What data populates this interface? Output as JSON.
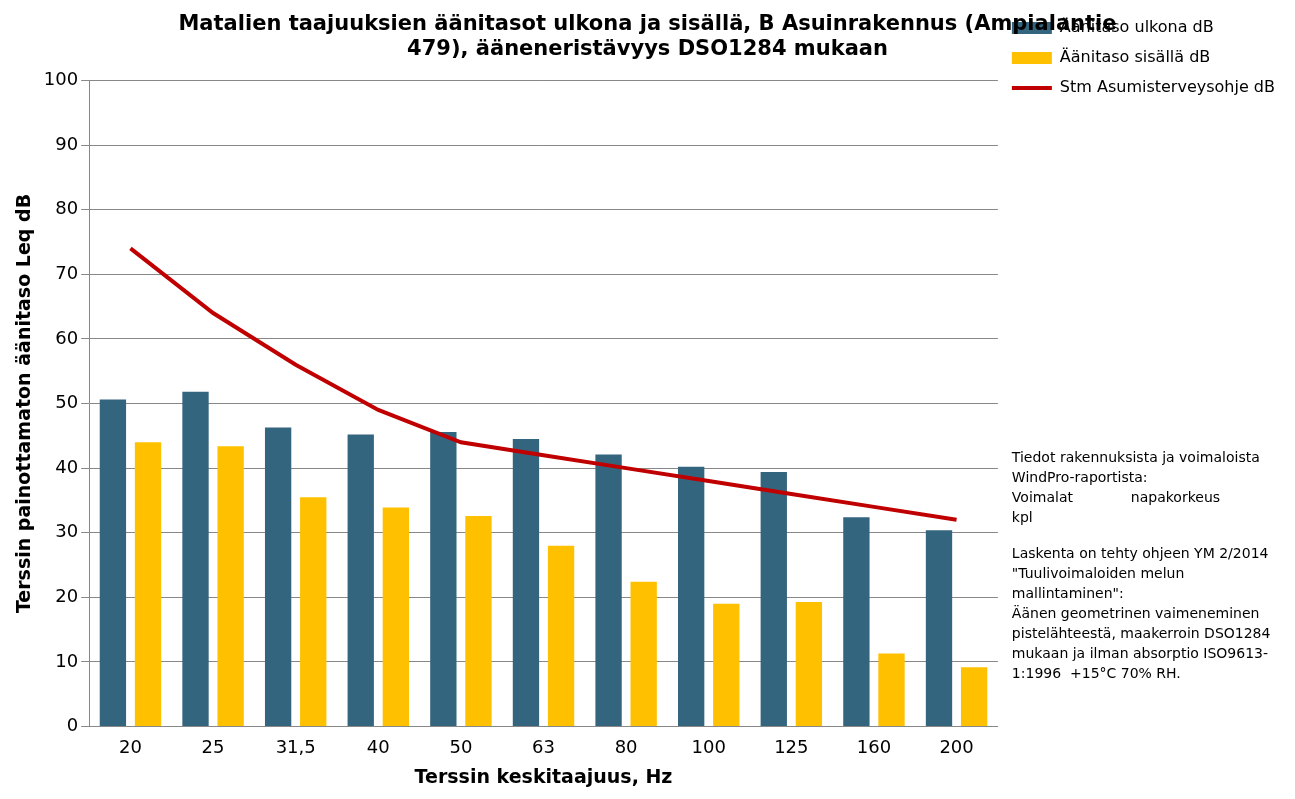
{
  "chart_data": {
    "type": "bar",
    "title": [
      "Matalien taajuuksien äänitasot ulkona ja sisällä, B Asuinrakennus (Ampialantie",
      "479), ääneneristävyys DSO1284 mukaan"
    ],
    "x_label": "Terssin keskitaajuus, Hz",
    "y_label": "Terssin painottamaton äänitaso Leq dB",
    "categories": [
      "20",
      "25",
      "31,5",
      "40",
      "50",
      "63",
      "80",
      "100",
      "125",
      "160",
      "200"
    ],
    "series": [
      {
        "name": "Äänitaso ulkona dB",
        "type": "bar",
        "color": "#34657f",
        "values": [
          50.6,
          51.8,
          46.3,
          45.2,
          45.6,
          44.5,
          42.1,
          40.2,
          39.4,
          32.4,
          30.4
        ]
      },
      {
        "name": "Äänitaso sisällä dB",
        "type": "bar",
        "color": "#ffc000",
        "values": [
          44.0,
          43.4,
          35.5,
          33.9,
          32.6,
          28.0,
          22.4,
          19.0,
          19.3,
          11.3,
          9.2
        ]
      },
      {
        "name": "Stm Asumisterveysohje dB",
        "type": "line",
        "color": "#c00000",
        "values": [
          74,
          64,
          56,
          49,
          44,
          42,
          40,
          38,
          36,
          34,
          32
        ]
      }
    ],
    "ylim": [
      0,
      100
    ],
    "yticks": [
      0,
      10,
      20,
      30,
      40,
      50,
      60,
      70,
      80,
      90,
      100
    ],
    "grid": true,
    "legend": "right",
    "annotations": [
      [
        "Tiedot rakennuksista ja voimaloista",
        "WindPro-raportista:",
        "Voimalat             napakorkeus",
        "kpl"
      ],
      [
        "Laskenta on tehty ohjeen YM 2/2014",
        "\"Tuulivoimaloiden melun",
        "mallintaminen\":",
        "Äänen geometrinen vaimeneminen",
        "pistelähteestä, maakerroin DSO1284",
        "mukaan ja ilman absorptio ISO9613-",
        "1:1996  +15°C 70% RH."
      ]
    ]
  }
}
